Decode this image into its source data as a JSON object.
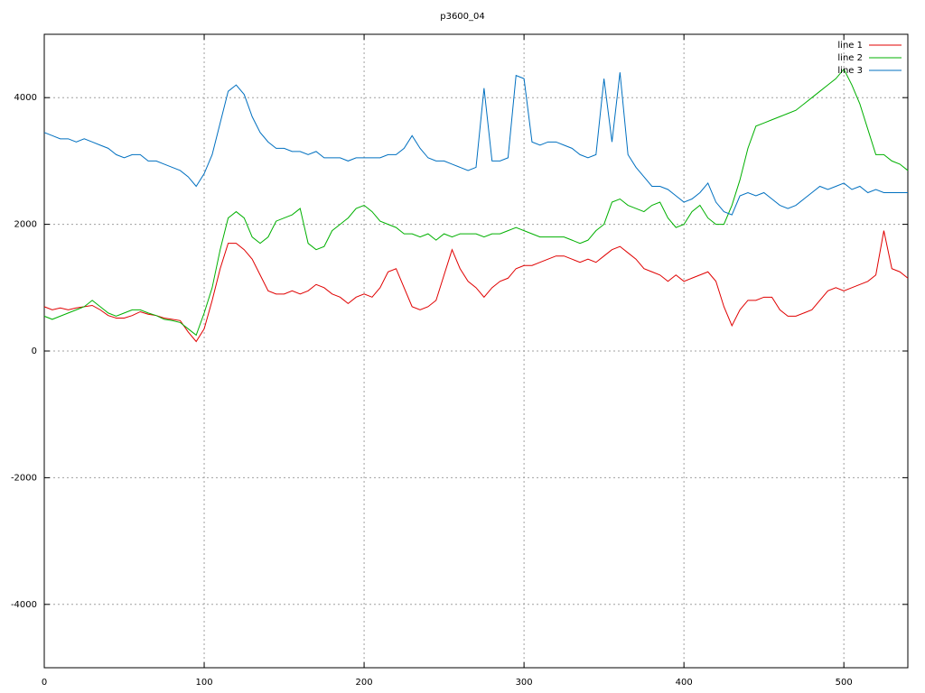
{
  "chart_data": {
    "type": "line",
    "title": "p3600_04",
    "x": [
      0,
      5,
      10,
      15,
      20,
      25,
      30,
      35,
      40,
      45,
      50,
      55,
      60,
      65,
      70,
      75,
      80,
      85,
      90,
      95,
      100,
      105,
      110,
      115,
      120,
      125,
      130,
      135,
      140,
      145,
      150,
      155,
      160,
      165,
      170,
      175,
      180,
      185,
      190,
      195,
      200,
      205,
      210,
      215,
      220,
      225,
      230,
      235,
      240,
      245,
      250,
      255,
      260,
      265,
      270,
      275,
      280,
      285,
      290,
      295,
      300,
      305,
      310,
      315,
      320,
      325,
      330,
      335,
      340,
      345,
      350,
      355,
      360,
      365,
      370,
      375,
      380,
      385,
      390,
      395,
      400,
      405,
      410,
      415,
      420,
      425,
      430,
      435,
      440,
      445,
      450,
      455,
      460,
      465,
      470,
      475,
      480,
      485,
      490,
      495,
      500,
      505,
      510,
      515,
      520,
      525,
      530,
      535,
      540
    ],
    "series": [
      {
        "name": "line 1",
        "color": "#e00000",
        "values": [
          700,
          650,
          680,
          650,
          680,
          700,
          720,
          650,
          560,
          520,
          520,
          560,
          620,
          580,
          560,
          520,
          500,
          480,
          300,
          150,
          350,
          800,
          1300,
          1700,
          1700,
          1600,
          1450,
          1200,
          950,
          900,
          900,
          950,
          900,
          950,
          1050,
          1000,
          900,
          850,
          750,
          850,
          900,
          850,
          1000,
          1250,
          1300,
          1000,
          700,
          650,
          700,
          800,
          1200,
          1600,
          1300,
          1100,
          1000,
          850,
          1000,
          1100,
          1150,
          1300,
          1350,
          1350,
          1400,
          1450,
          1500,
          1500,
          1450,
          1400,
          1450,
          1400,
          1500,
          1600,
          1650,
          1550,
          1450,
          1300,
          1250,
          1200,
          1100,
          1200,
          1100,
          1150,
          1200,
          1250,
          1100,
          700,
          400,
          650,
          800,
          800,
          850,
          850,
          650,
          550,
          550,
          600,
          650,
          800,
          950,
          1000,
          950,
          1000,
          1050,
          1100,
          1200,
          1900,
          1300,
          1250,
          1150
        ]
      },
      {
        "name": "line 2",
        "color": "#00b000",
        "values": [
          550,
          500,
          550,
          600,
          650,
          700,
          800,
          700,
          600,
          550,
          600,
          650,
          650,
          600,
          560,
          500,
          480,
          450,
          350,
          250,
          600,
          1000,
          1600,
          2100,
          2200,
          2100,
          1800,
          1700,
          1800,
          2050,
          2100,
          2150,
          2250,
          1700,
          1600,
          1650,
          1900,
          2000,
          2100,
          2250,
          2300,
          2200,
          2050,
          2000,
          1950,
          1850,
          1850,
          1800,
          1850,
          1750,
          1850,
          1800,
          1850,
          1850,
          1850,
          1800,
          1850,
          1850,
          1900,
          1950,
          1900,
          1850,
          1800,
          1800,
          1800,
          1800,
          1750,
          1700,
          1750,
          1900,
          2000,
          2350,
          2400,
          2300,
          2250,
          2200,
          2300,
          2350,
          2100,
          1950,
          2000,
          2200,
          2300,
          2100,
          2000,
          2000,
          2300,
          2700,
          3200,
          3550,
          3600,
          3650,
          3700,
          3750,
          3800,
          3900,
          4000,
          4100,
          4200,
          4300,
          4450,
          4200,
          3900,
          3500,
          3100,
          3100,
          3000,
          2950,
          2850
        ]
      },
      {
        "name": "line 3",
        "color": "#0070c0",
        "values": [
          3450,
          3400,
          3350,
          3350,
          3300,
          3350,
          3300,
          3250,
          3200,
          3100,
          3050,
          3100,
          3100,
          3000,
          3000,
          2950,
          2900,
          2850,
          2750,
          2600,
          2800,
          3100,
          3600,
          4100,
          4200,
          4050,
          3700,
          3450,
          3300,
          3200,
          3200,
          3150,
          3150,
          3100,
          3150,
          3050,
          3050,
          3050,
          3000,
          3050,
          3050,
          3050,
          3050,
          3100,
          3100,
          3200,
          3400,
          3200,
          3050,
          3000,
          3000,
          2950,
          2900,
          2850,
          2900,
          4150,
          3000,
          3000,
          3050,
          4350,
          4300,
          3300,
          3250,
          3300,
          3300,
          3250,
          3200,
          3100,
          3050,
          3100,
          4300,
          3300,
          4400,
          3100,
          2900,
          2750,
          2600,
          2600,
          2550,
          2450,
          2350,
          2400,
          2500,
          2650,
          2350,
          2200,
          2150,
          2450,
          2500,
          2450,
          2500,
          2400,
          2300,
          2250,
          2300,
          2400,
          2500,
          2600,
          2550,
          2600,
          2650,
          2550,
          2600,
          2500,
          2550,
          2500,
          2500,
          2500,
          2500
        ]
      }
    ],
    "xlim": [
      0,
      540
    ],
    "ylim": [
      -5000,
      5000
    ],
    "xticks": [
      0,
      100,
      200,
      300,
      400,
      500
    ],
    "yticks": [
      -4000,
      -2000,
      0,
      2000,
      4000
    ],
    "grid": true,
    "legend": "top-right"
  }
}
